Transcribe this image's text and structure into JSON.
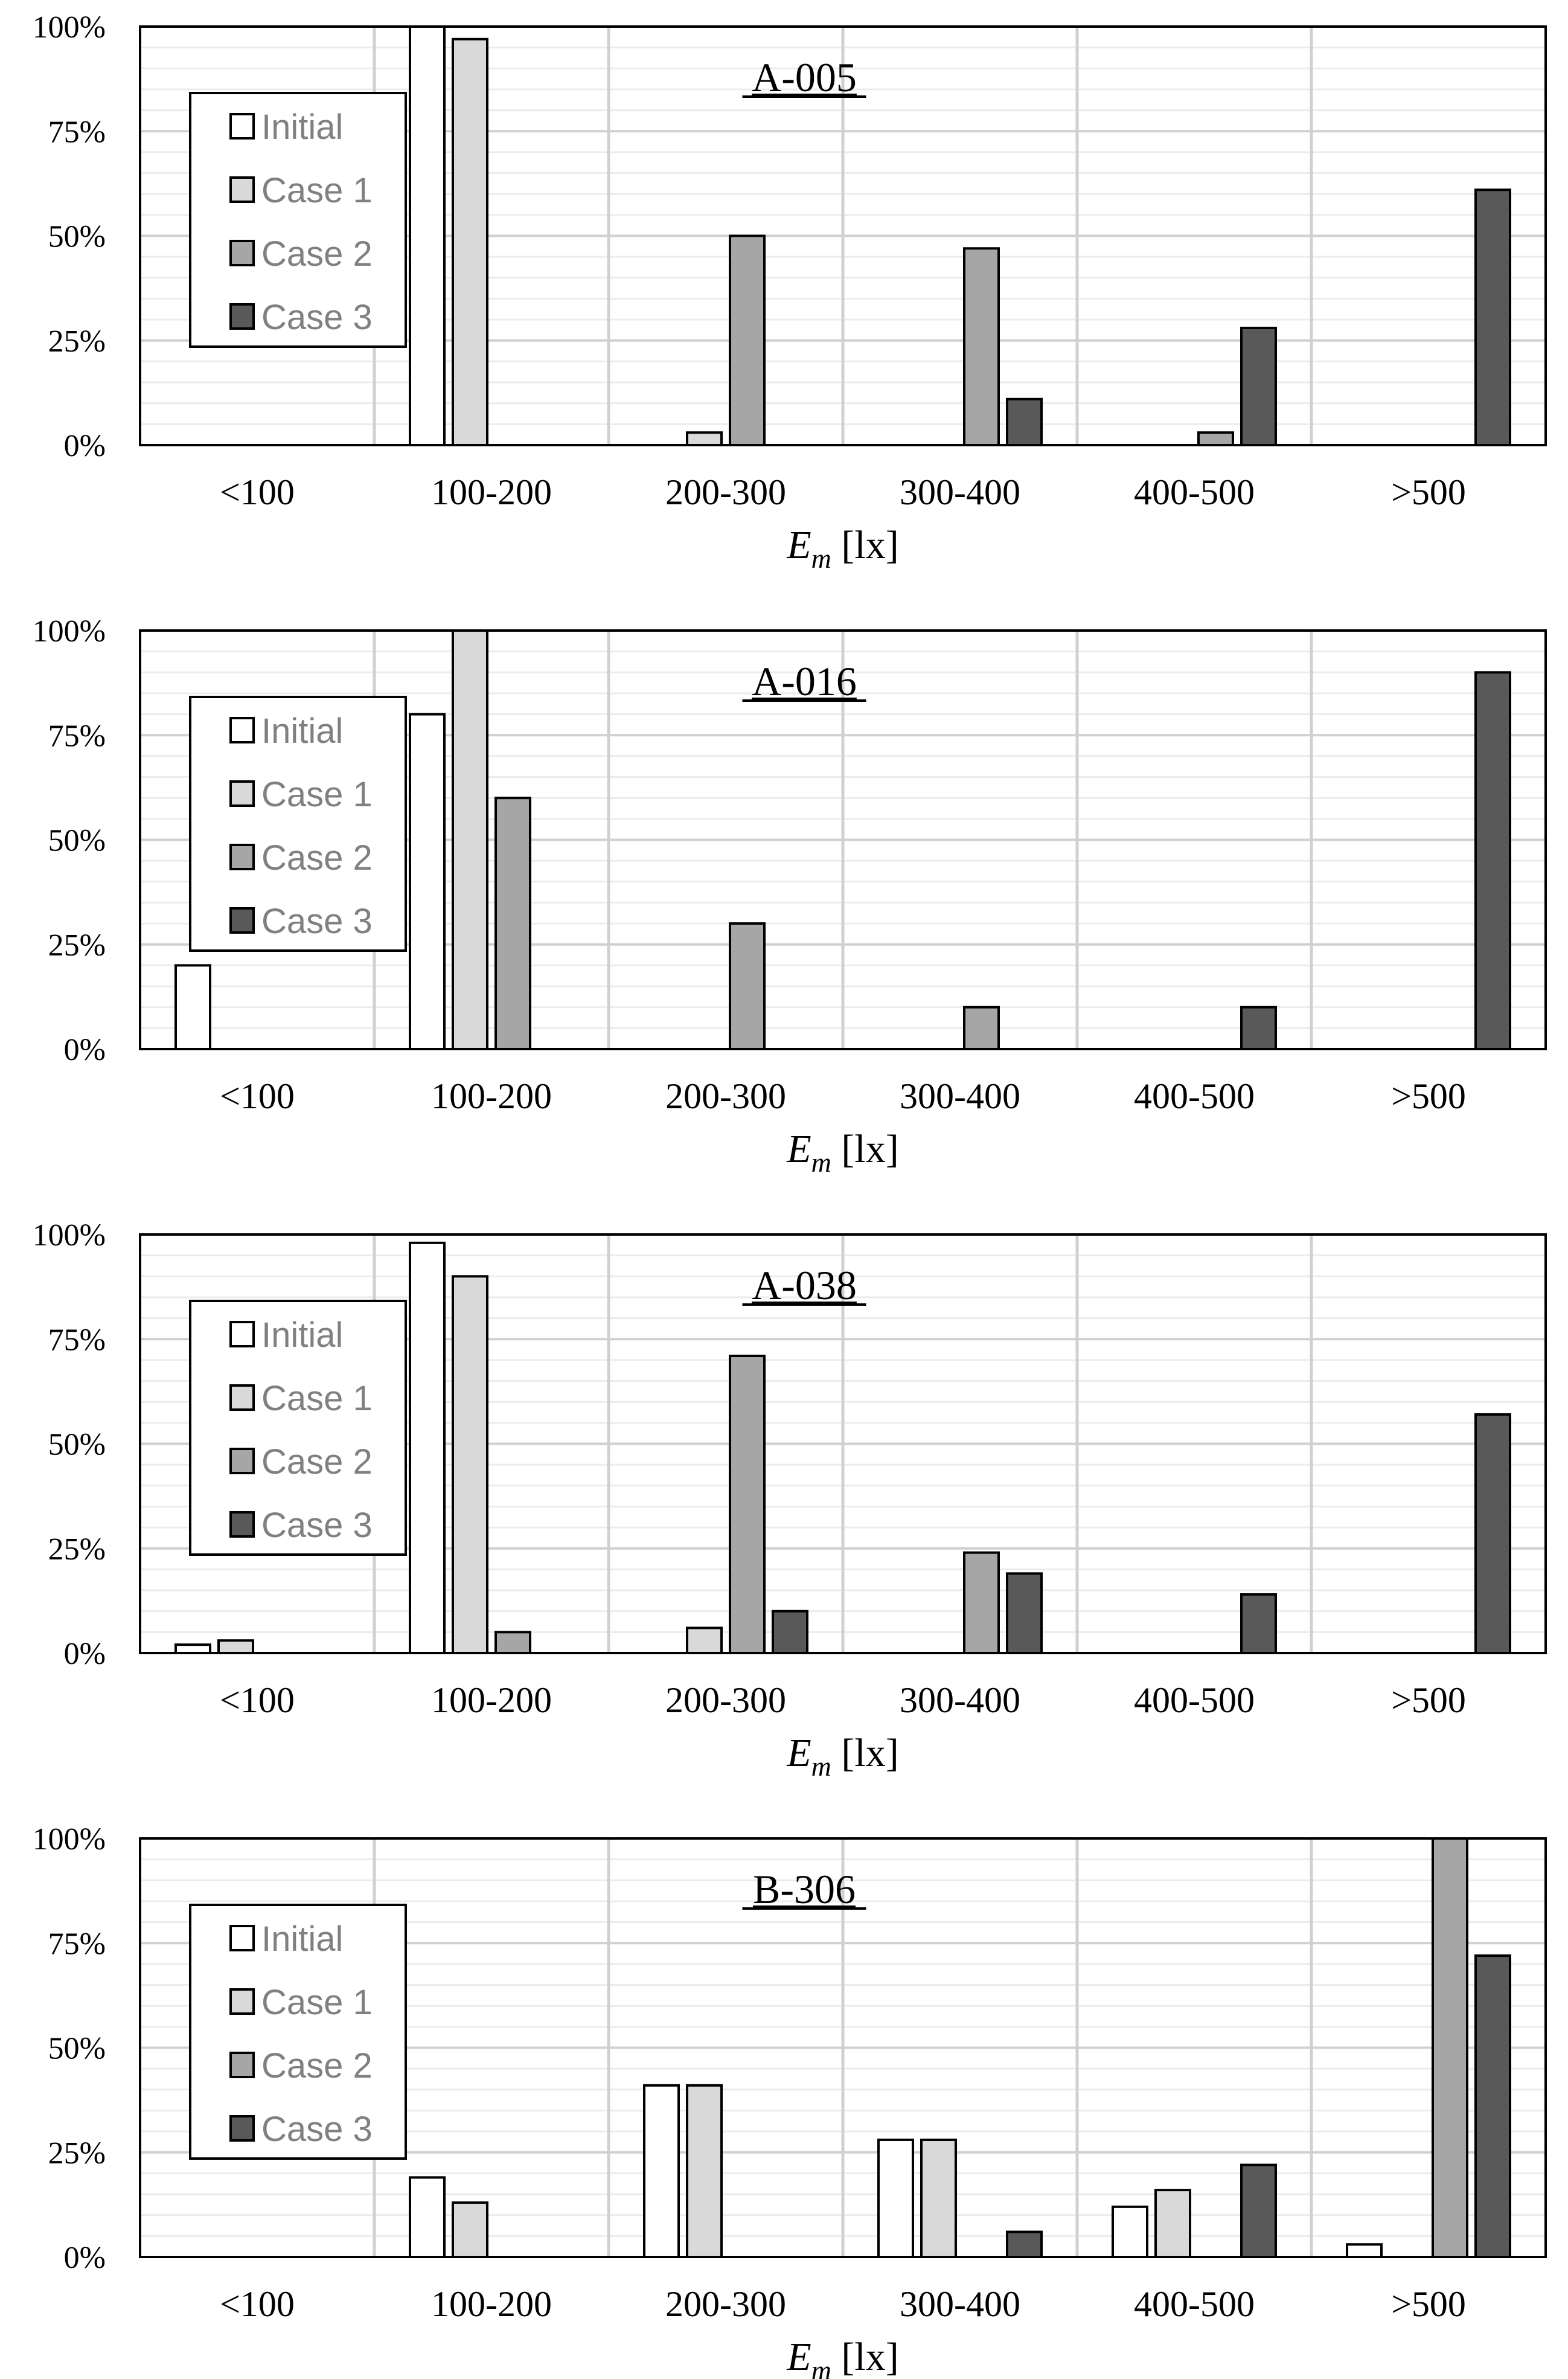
{
  "colors": {
    "Initial": "#ffffff",
    "Case 1": "#d9d9d9",
    "Case 2": "#a6a6a6",
    "Case 3": "#595959",
    "gridMajor": "#d0d0d0",
    "gridMinor": "#ececec",
    "border": "#000000"
  },
  "chart_data": [
    {
      "type": "bar",
      "title": "A-005",
      "categories": [
        "<100",
        "100-200",
        "200-300",
        "300-400",
        "400-500",
        ">500"
      ],
      "xlabel_main": "E",
      "xlabel_sub": "m",
      "xlabel_unit": " [lx]",
      "ylim": [
        0,
        100
      ],
      "yticks": [
        "0%",
        "25%",
        "50%",
        "75%",
        "100%"
      ],
      "legend_position": "top-left",
      "series": [
        {
          "name": "Initial",
          "values": [
            0,
            100,
            0,
            0,
            0,
            0
          ]
        },
        {
          "name": "Case 1",
          "values": [
            0,
            97,
            3,
            0,
            0,
            0
          ]
        },
        {
          "name": "Case 2",
          "values": [
            0,
            0,
            50,
            47,
            3,
            0
          ]
        },
        {
          "name": "Case 3",
          "values": [
            0,
            0,
            0,
            11,
            28,
            61
          ]
        }
      ]
    },
    {
      "type": "bar",
      "title": "A-016",
      "categories": [
        "<100",
        "100-200",
        "200-300",
        "300-400",
        "400-500",
        ">500"
      ],
      "xlabel_main": "E",
      "xlabel_sub": "m",
      "xlabel_unit": " [lx]",
      "ylim": [
        0,
        100
      ],
      "yticks": [
        "0%",
        "25%",
        "50%",
        "75%",
        "100%"
      ],
      "legend_position": "top-left",
      "series": [
        {
          "name": "Initial",
          "values": [
            20,
            80,
            0,
            0,
            0,
            0
          ]
        },
        {
          "name": "Case 1",
          "values": [
            0,
            100,
            0,
            0,
            0,
            0
          ]
        },
        {
          "name": "Case 2",
          "values": [
            0,
            60,
            30,
            10,
            0,
            0
          ]
        },
        {
          "name": "Case 3",
          "values": [
            0,
            0,
            0,
            0,
            10,
            90
          ]
        }
      ]
    },
    {
      "type": "bar",
      "title": "A-038",
      "categories": [
        "<100",
        "100-200",
        "200-300",
        "300-400",
        "400-500",
        ">500"
      ],
      "xlabel_main": "E",
      "xlabel_sub": "m",
      "xlabel_unit": " [lx]",
      "ylim": [
        0,
        100
      ],
      "yticks": [
        "0%",
        "25%",
        "50%",
        "75%",
        "100%"
      ],
      "legend_position": "top-left",
      "series": [
        {
          "name": "Initial",
          "values": [
            2,
            98,
            0,
            0,
            0,
            0
          ]
        },
        {
          "name": "Case 1",
          "values": [
            3,
            90,
            6,
            0,
            0,
            0
          ]
        },
        {
          "name": "Case 2",
          "values": [
            0,
            5,
            71,
            24,
            0,
            0
          ]
        },
        {
          "name": "Case 3",
          "values": [
            0,
            0,
            10,
            19,
            14,
            57
          ]
        }
      ]
    },
    {
      "type": "bar",
      "title": "B-306",
      "categories": [
        "<100",
        "100-200",
        "200-300",
        "300-400",
        "400-500",
        ">500"
      ],
      "xlabel_main": "E",
      "xlabel_sub": "m",
      "xlabel_unit": " [lx]",
      "ylim": [
        0,
        100
      ],
      "yticks": [
        "0%",
        "25%",
        "50%",
        "75%",
        "100%"
      ],
      "legend_position": "top-left",
      "series": [
        {
          "name": "Initial",
          "values": [
            0,
            19,
            41,
            28,
            12,
            3
          ]
        },
        {
          "name": "Case 1",
          "values": [
            0,
            13,
            41,
            28,
            16,
            0
          ]
        },
        {
          "name": "Case 2",
          "values": [
            0,
            0,
            0,
            0,
            0,
            100
          ]
        },
        {
          "name": "Case 3",
          "values": [
            0,
            0,
            0,
            6,
            22,
            72
          ]
        }
      ]
    }
  ]
}
